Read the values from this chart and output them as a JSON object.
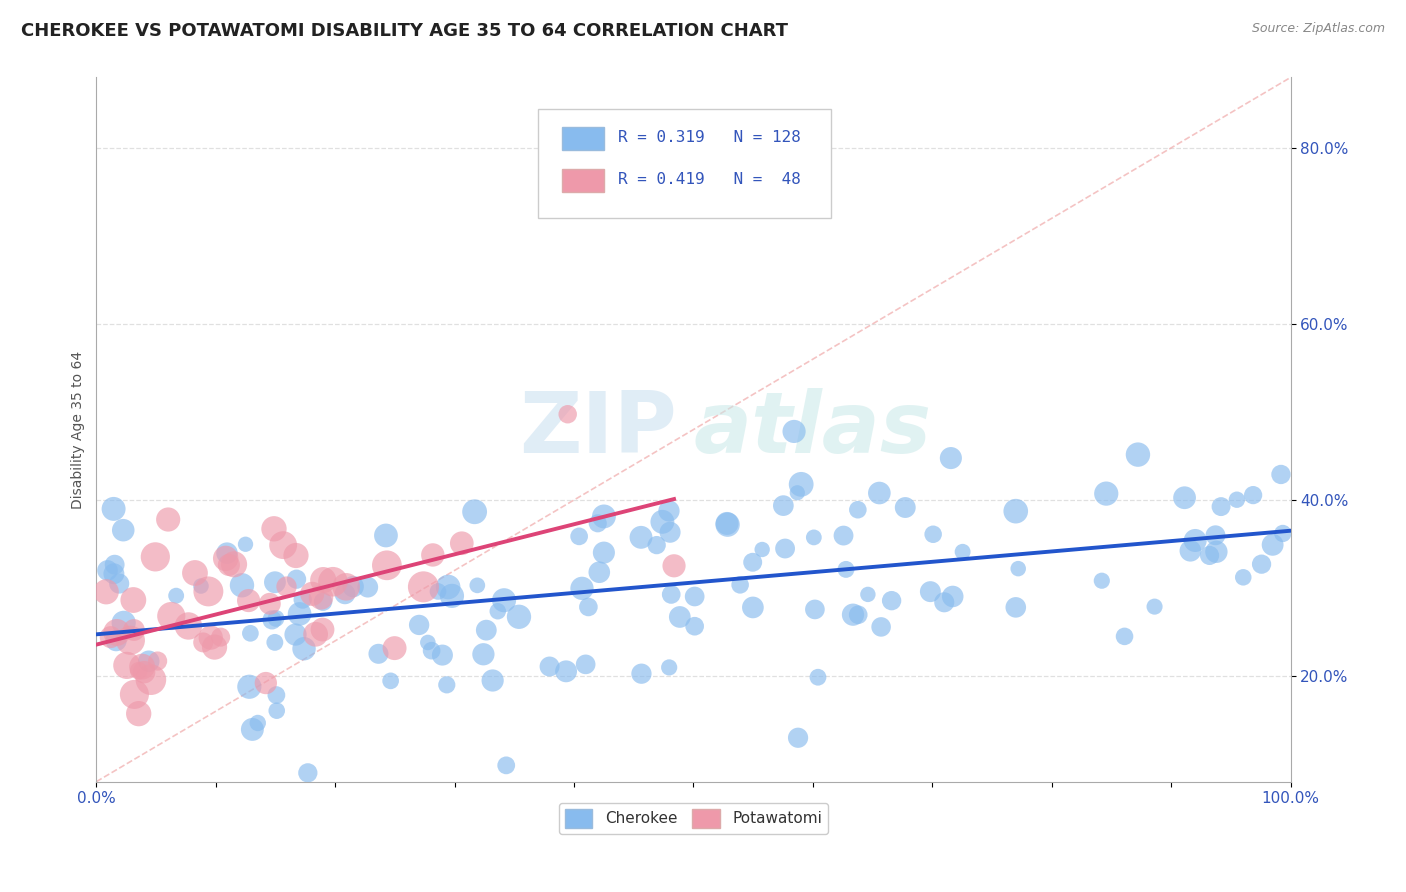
{
  "title": "CHEROKEE VS POTAWATOMI DISABILITY AGE 35 TO 64 CORRELATION CHART",
  "source": "Source: ZipAtlas.com",
  "ylabel": "Disability Age 35 to 64",
  "cherokee_R": 0.319,
  "cherokee_N": 128,
  "potawatomi_R": 0.419,
  "potawatomi_N": 48,
  "cherokee_color": "#88bbee",
  "potawatomi_color": "#ee99aa",
  "cherokee_line_color": "#2255cc",
  "potawatomi_line_color": "#dd4477",
  "diagonal_color": "#cccccc",
  "background_color": "#ffffff",
  "grid_color": "#dddddd",
  "watermark_zip": "ZIP",
  "watermark_atlas": "atlas",
  "title_fontsize": 13,
  "label_fontsize": 10,
  "tick_fontsize": 11,
  "xlim": [
    0.0,
    1.0
  ],
  "ylim": [
    0.08,
    0.88
  ]
}
